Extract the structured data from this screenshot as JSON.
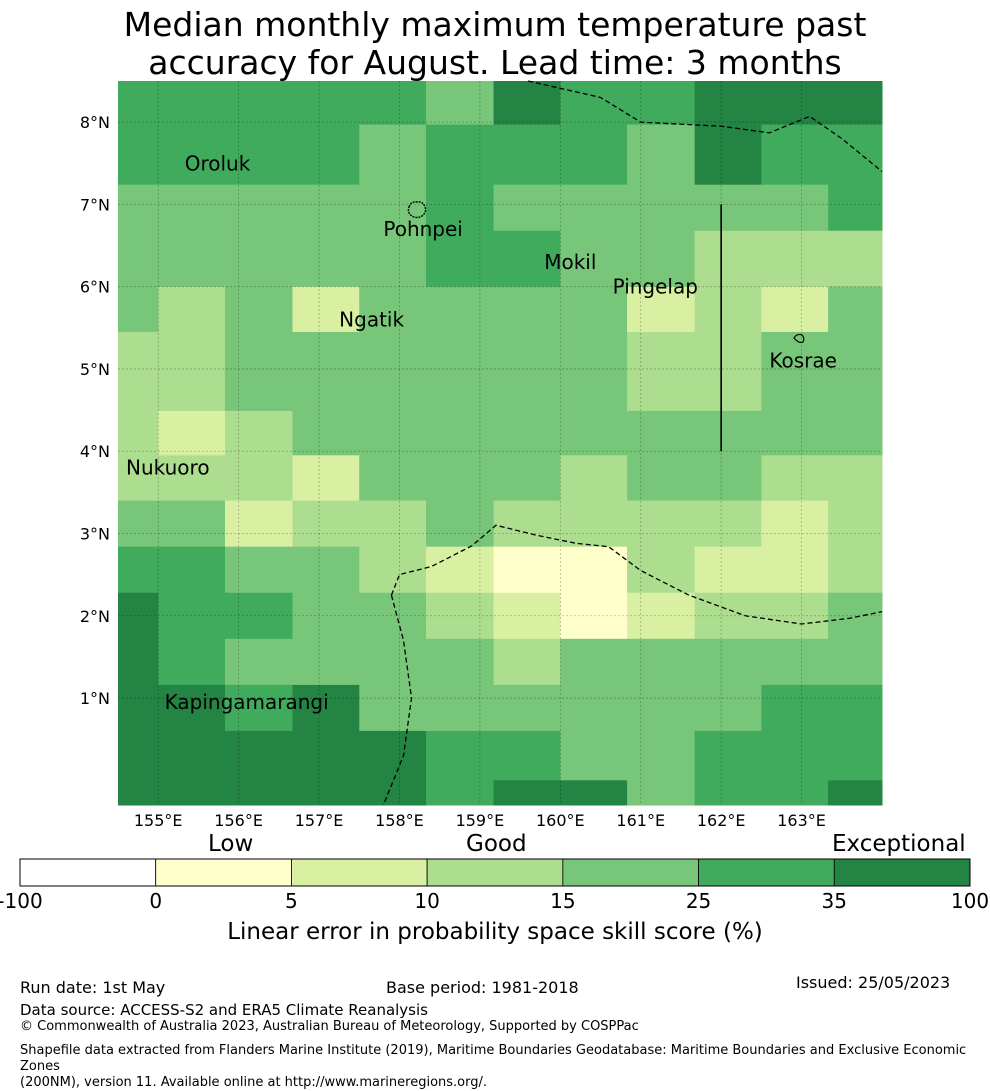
{
  "title_line1": "Median monthly maximum temperature past",
  "title_line2": "accuracy for August. Lead time: 3 months",
  "map": {
    "lon_range": [
      154.5,
      164.0
    ],
    "lat_range": [
      -0.3,
      8.5
    ],
    "lon_ticks": [
      {
        "value": 155,
        "label": "155°E"
      },
      {
        "value": 156,
        "label": "156°E"
      },
      {
        "value": 157,
        "label": "157°E"
      },
      {
        "value": 158,
        "label": "158°E"
      },
      {
        "value": 159,
        "label": "159°E"
      },
      {
        "value": 160,
        "label": "160°E"
      },
      {
        "value": 161,
        "label": "161°E"
      },
      {
        "value": 162,
        "label": "162°E"
      },
      {
        "value": 163,
        "label": "163°E"
      }
    ],
    "lat_ticks": [
      {
        "value": 8,
        "label": "8°N"
      },
      {
        "value": 7,
        "label": "7°N"
      },
      {
        "value": 6,
        "label": "6°N"
      },
      {
        "value": 5,
        "label": "5°N"
      },
      {
        "value": 4,
        "label": "4°N"
      },
      {
        "value": 3,
        "label": "3°N"
      },
      {
        "value": 2,
        "label": "2°N"
      },
      {
        "value": 1,
        "label": "1°N"
      }
    ],
    "place_labels": [
      {
        "name": "Oroluk",
        "lon": 155.33,
        "lat": 7.5
      },
      {
        "name": "Pohnpei",
        "lon": 157.8,
        "lat": 6.7
      },
      {
        "name": "Mokil",
        "lon": 159.8,
        "lat": 6.3
      },
      {
        "name": "Pingelap",
        "lon": 160.65,
        "lat": 6.0
      },
      {
        "name": "Ngatik",
        "lon": 157.25,
        "lat": 5.6
      },
      {
        "name": "Kosrae",
        "lon": 162.6,
        "lat": 5.1
      },
      {
        "name": "Nukuoro",
        "lon": 154.6,
        "lat": 3.8
      },
      {
        "name": "Kapingamarangi",
        "lon": 155.08,
        "lat": 0.95
      }
    ],
    "grid_lon_edges": [
      154.5,
      155.0,
      155.83,
      156.67,
      157.5,
      158.33,
      159.17,
      160.0,
      160.83,
      161.67,
      162.5,
      163.33,
      164.0
    ],
    "grid_lat_edges": [
      8.5,
      7.97,
      7.24,
      6.68,
      6.0,
      5.45,
      4.49,
      3.95,
      3.4,
      2.84,
      2.28,
      1.72,
      1.16,
      0.6,
      0.0,
      -0.3
    ],
    "skill_classes": [
      [
        5,
        5,
        5,
        5,
        5,
        4,
        6,
        5,
        5,
        6,
        6,
        6
      ],
      [
        5,
        5,
        5,
        5,
        4,
        5,
        5,
        5,
        4,
        6,
        5,
        5
      ],
      [
        4,
        4,
        4,
        4,
        4,
        5,
        4,
        4,
        4,
        4,
        4,
        5
      ],
      [
        4,
        4,
        4,
        4,
        4,
        5,
        5,
        4,
        4,
        3,
        3,
        3
      ],
      [
        4,
        3,
        4,
        2,
        4,
        4,
        4,
        4,
        2,
        3,
        2,
        4
      ],
      [
        3,
        3,
        4,
        4,
        4,
        4,
        4,
        4,
        3,
        3,
        4,
        4
      ],
      [
        3,
        2,
        3,
        4,
        4,
        4,
        4,
        4,
        4,
        4,
        4,
        4
      ],
      [
        3,
        3,
        3,
        2,
        4,
        4,
        4,
        3,
        4,
        4,
        3,
        3
      ],
      [
        4,
        4,
        2,
        3,
        3,
        4,
        3,
        3,
        3,
        3,
        2,
        3
      ],
      [
        5,
        5,
        4,
        4,
        3,
        2,
        1,
        1,
        3,
        2,
        2,
        3
      ],
      [
        6,
        5,
        5,
        4,
        4,
        3,
        2,
        1,
        2,
        3,
        3,
        4
      ],
      [
        6,
        5,
        4,
        4,
        4,
        4,
        3,
        4,
        4,
        4,
        4,
        4
      ],
      [
        6,
        6,
        5,
        6,
        4,
        4,
        4,
        4,
        4,
        4,
        5,
        5
      ],
      [
        6,
        6,
        6,
        6,
        6,
        5,
        5,
        4,
        4,
        5,
        5,
        5
      ],
      [
        6,
        6,
        6,
        6,
        6,
        5,
        6,
        6,
        4,
        5,
        5,
        6
      ]
    ],
    "boundaries": [
      [
        [
          159.6,
          8.5
        ],
        [
          160.5,
          8.3
        ],
        [
          161.0,
          8.0
        ],
        [
          162.0,
          7.95
        ],
        [
          162.6,
          7.87
        ],
        [
          163.1,
          8.07
        ],
        [
          163.5,
          7.8
        ],
        [
          164.0,
          7.4
        ]
      ],
      [
        [
          157.9,
          2.25
        ],
        [
          158.0,
          2.5
        ],
        [
          158.4,
          2.6
        ],
        [
          158.9,
          2.85
        ],
        [
          159.2,
          3.1
        ],
        [
          159.7,
          2.98
        ],
        [
          160.2,
          2.88
        ],
        [
          160.6,
          2.84
        ],
        [
          161.0,
          2.55
        ],
        [
          161.6,
          2.25
        ],
        [
          162.3,
          2.0
        ],
        [
          163.0,
          1.9
        ],
        [
          163.6,
          1.97
        ],
        [
          164.0,
          2.05
        ]
      ],
      [
        [
          157.9,
          2.25
        ],
        [
          158.05,
          1.7
        ],
        [
          158.15,
          1.0
        ],
        [
          158.05,
          0.3
        ],
        [
          157.8,
          -0.3
        ]
      ]
    ],
    "line_162": [
      [
        162.0,
        7.0
      ],
      [
        162.0,
        4.0
      ]
    ]
  },
  "colorbar": {
    "categories": [
      {
        "label": "Low",
        "at": 1
      },
      {
        "label": "Good",
        "at": 3.5
      },
      {
        "label": "Exceptional",
        "at": 7
      }
    ],
    "ticks": [
      "-100",
      "0",
      "5",
      "10",
      "15",
      "25",
      "35",
      "100"
    ],
    "colors": [
      "#ffffff",
      "#ffffcc",
      "#d9f0a3",
      "#addd8e",
      "#78c679",
      "#41ab5d",
      "#238443"
    ],
    "title": "Linear error in probability space skill score (%)"
  },
  "footer": {
    "run_date": "Run date: 1st May",
    "base_period": "Base period: 1981-2018",
    "issued": "Issued: 25/05/2023",
    "data_source": "Data source: ACCESS-S2 and ERA5 Climate Reanalysis",
    "copyright": "© Commonwealth of Australia 2023, Australian Bureau of Meteorology, Supported by COSPPac",
    "shapefile_line1": "Shapefile data extracted from Flanders Marine Institute (2019), Maritime Boundaries Geodatabase: Maritime Boundaries and Exclusive Economic Zones",
    "shapefile_line2": "(200NM), version 11. Available online at http://www.marineregions.org/."
  }
}
